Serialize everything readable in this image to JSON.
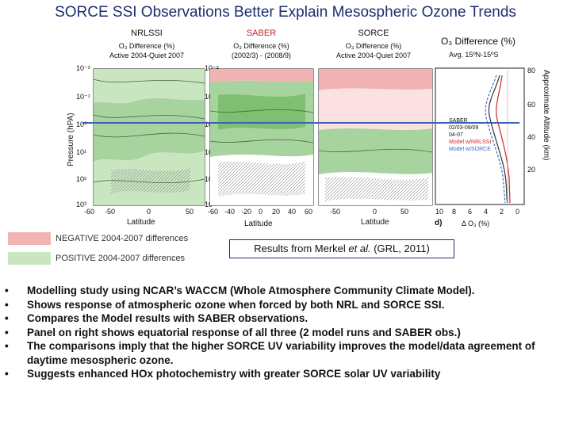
{
  "title": "SORCE SSI Observations Better Explain Mesospheric Ozone Trends",
  "panels": [
    {
      "name": "NRLSSI",
      "sub1": "O₃ Difference (%)",
      "sub2": "Active 2004-Quiet 2007"
    },
    {
      "name": "SABER",
      "sub1": "O₃ Difference (%)",
      "sub2": "(2002/3) - (2008/9)"
    },
    {
      "name": "SORCE",
      "sub1": "O₃ Difference (%)",
      "sub2": "Active 2004-Quiet 2007"
    }
  ],
  "profile_panel": {
    "title": "O₃ Difference (%)",
    "subtitle": "Avg. 15ºN-15ºS",
    "right_axis_label": "Approximate Altitude (km)",
    "right_ticks": [
      "80",
      "60",
      "40",
      "20"
    ],
    "x_ticks": [
      "10",
      "8",
      "6",
      "4",
      "2",
      "0"
    ],
    "x_label": "Δ O₃ (%)",
    "panel_letter": "d)",
    "legend": [
      {
        "label": "SABER",
        "color": "#333333"
      },
      {
        "label": "02/03-08/09",
        "color": "#333333"
      },
      {
        "label": "04-07",
        "color": "#333333"
      },
      {
        "label": "Model w/NRLSSI",
        "color": "#d22a2a"
      },
      {
        "label": "Model w/SORCE",
        "color": "#3a6cc7"
      }
    ]
  },
  "axes": {
    "y_label": "Pressure (hPA)",
    "y_ticks": [
      "10⁻²",
      "10⁻¹",
      "10⁰",
      "10¹",
      "10²",
      "10³"
    ],
    "x_label": "Latitude",
    "x_ticks_a": [
      "-60",
      "-50",
      "0",
      "50"
    ],
    "x_ticks_b": [
      "-60",
      "-40",
      "-20",
      "0",
      "20",
      "40",
      "60"
    ],
    "x_ticks_c": [
      "-50",
      "0",
      "50"
    ]
  },
  "legend": [
    {
      "label": "NEGATIVE 2004-2007 differences",
      "color": "#f2b3b3"
    },
    {
      "label": "POSITIVE  2004-2007 differences",
      "color": "#c9e6c1"
    }
  ],
  "citation": {
    "pre": "Results from Merkel ",
    "italic": "et al.",
    "post": " (GRL, 2011)"
  },
  "bullets": [
    "Modelling study using NCAR’s WACCM (Whole Atmosphere Community  Climate Model).",
    "Shows response of atmospheric ozone when forced by both NRL and SORCE SSI.",
    "Compares the Model results with SABER observations.",
    "Panel on right shows equatorial response of all three (2 model runs and SABER obs.)",
    "The comparisons imply that the higher SORCE UV variability improves the model/data agreement of daytime mesospheric ozone.",
    "Suggests enhanced HOx photochemistry with greater SORCE solar UV variability"
  ],
  "colors": {
    "title": "#1a2f6e",
    "negative": "#f2b3b3",
    "positive": "#c9e6c1",
    "reference_line": "#3d5fb5"
  }
}
